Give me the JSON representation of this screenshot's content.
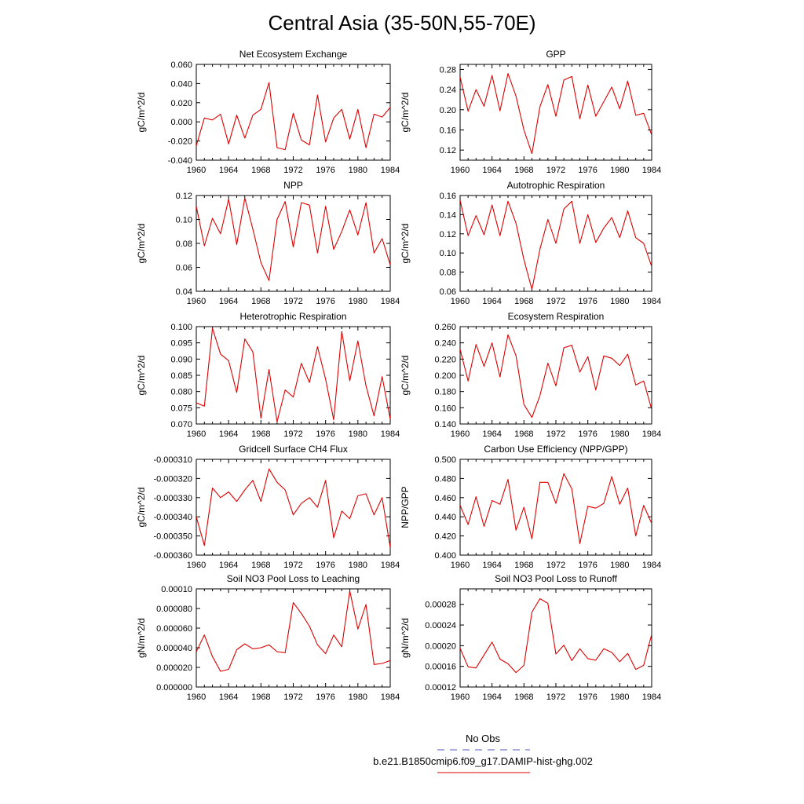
{
  "page_title": "Central Asia (35-50N,55-70E)",
  "legend": [
    {
      "label": "No Obs",
      "color": "#5555cc",
      "style": "dashed"
    },
    {
      "label": "b.e21.B1850cmip6.f09_g17.DAMIP-hist-ghg.002",
      "color": "#dd0000",
      "style": "solid"
    }
  ],
  "chart_data": [
    {
      "type": "line",
      "title": "Net Ecosystem Exchange",
      "ylabel": "gC/m^2/d",
      "xlim": [
        1960,
        1984
      ],
      "ylim": [
        -0.04,
        0.06
      ],
      "xticks": [
        1960,
        1964,
        1968,
        1972,
        1976,
        1980,
        1984
      ],
      "yticks": [
        -0.04,
        -0.02,
        0.0,
        0.02,
        0.04,
        0.06
      ],
      "ytick_labels": [
        "-0.040",
        "-0.020",
        "0.000",
        "0.020",
        "0.040",
        "0.060"
      ],
      "x": [
        1960,
        1961,
        1962,
        1963,
        1964,
        1965,
        1966,
        1967,
        1968,
        1969,
        1970,
        1971,
        1972,
        1973,
        1974,
        1975,
        1976,
        1977,
        1978,
        1979,
        1980,
        1981,
        1982,
        1983,
        1984
      ],
      "series": [
        {
          "color": "#dd0000",
          "values": [
            -0.025,
            0.004,
            0.002,
            0.008,
            -0.023,
            0.007,
            -0.017,
            0.007,
            0.013,
            0.041,
            -0.027,
            -0.029,
            0.009,
            -0.019,
            -0.024,
            0.028,
            -0.021,
            0.004,
            0.013,
            -0.018,
            0.013,
            -0.027,
            0.008,
            0.005,
            0.015
          ]
        }
      ]
    },
    {
      "type": "line",
      "title": "GPP",
      "ylabel": "gC/m^2/d",
      "xlim": [
        1960,
        1984
      ],
      "ylim": [
        0.1,
        0.29
      ],
      "xticks": [
        1960,
        1964,
        1968,
        1972,
        1976,
        1980,
        1984
      ],
      "yticks": [
        0.12,
        0.16,
        0.2,
        0.24,
        0.28
      ],
      "ytick_labels": [
        "0.12",
        "0.16",
        "0.20",
        "0.24",
        "0.28"
      ],
      "x": [
        1960,
        1961,
        1962,
        1963,
        1964,
        1965,
        1966,
        1967,
        1968,
        1969,
        1970,
        1971,
        1972,
        1973,
        1974,
        1975,
        1976,
        1977,
        1978,
        1979,
        1980,
        1981,
        1982,
        1983,
        1984
      ],
      "series": [
        {
          "color": "#dd0000",
          "values": [
            0.265,
            0.197,
            0.24,
            0.207,
            0.268,
            0.198,
            0.272,
            0.227,
            0.16,
            0.113,
            0.206,
            0.25,
            0.187,
            0.259,
            0.266,
            0.182,
            0.249,
            0.187,
            0.216,
            0.245,
            0.202,
            0.257,
            0.189,
            0.193,
            0.15
          ]
        }
      ]
    },
    {
      "type": "line",
      "title": "NPP",
      "ylabel": "gC/m^2/d",
      "xlim": [
        1960,
        1984
      ],
      "ylim": [
        0.04,
        0.12
      ],
      "xticks": [
        1960,
        1964,
        1968,
        1972,
        1976,
        1980,
        1984
      ],
      "yticks": [
        0.04,
        0.06,
        0.08,
        0.1,
        0.12
      ],
      "ytick_labels": [
        "0.04",
        "0.06",
        "0.08",
        "0.10",
        "0.12"
      ],
      "x": [
        1960,
        1961,
        1962,
        1963,
        1964,
        1965,
        1966,
        1967,
        1968,
        1969,
        1970,
        1971,
        1972,
        1973,
        1974,
        1975,
        1976,
        1977,
        1978,
        1979,
        1980,
        1981,
        1982,
        1983,
        1984
      ],
      "series": [
        {
          "color": "#dd0000",
          "values": [
            0.111,
            0.078,
            0.101,
            0.088,
            0.117,
            0.079,
            0.118,
            0.092,
            0.064,
            0.049,
            0.1,
            0.115,
            0.077,
            0.114,
            0.112,
            0.072,
            0.111,
            0.075,
            0.09,
            0.108,
            0.087,
            0.114,
            0.072,
            0.084,
            0.062
          ]
        }
      ]
    },
    {
      "type": "line",
      "title": "Autotrophic Respiration",
      "ylabel": "gC/m^2/d",
      "xlim": [
        1960,
        1984
      ],
      "ylim": [
        0.06,
        0.16
      ],
      "xticks": [
        1960,
        1964,
        1968,
        1972,
        1976,
        1980,
        1984
      ],
      "yticks": [
        0.06,
        0.08,
        0.1,
        0.12,
        0.14,
        0.16
      ],
      "ytick_labels": [
        "0.06",
        "0.08",
        "0.10",
        "0.12",
        "0.14",
        "0.16"
      ],
      "x": [
        1960,
        1961,
        1962,
        1963,
        1964,
        1965,
        1966,
        1967,
        1968,
        1969,
        1970,
        1971,
        1972,
        1973,
        1974,
        1975,
        1976,
        1977,
        1978,
        1979,
        1980,
        1981,
        1982,
        1983,
        1984
      ],
      "series": [
        {
          "color": "#dd0000",
          "values": [
            0.155,
            0.118,
            0.139,
            0.119,
            0.15,
            0.118,
            0.154,
            0.131,
            0.093,
            0.062,
            0.104,
            0.135,
            0.11,
            0.146,
            0.154,
            0.11,
            0.14,
            0.111,
            0.126,
            0.137,
            0.116,
            0.144,
            0.116,
            0.11,
            0.086
          ]
        }
      ]
    },
    {
      "type": "line",
      "title": "Heterotrophic Respiration",
      "ylabel": "gC/m^2/d",
      "xlim": [
        1960,
        1984
      ],
      "ylim": [
        0.07,
        0.1
      ],
      "xticks": [
        1960,
        1964,
        1968,
        1972,
        1976,
        1980,
        1984
      ],
      "yticks": [
        0.07,
        0.075,
        0.08,
        0.085,
        0.09,
        0.095,
        0.1
      ],
      "ytick_labels": [
        "0.070",
        "0.075",
        "0.080",
        "0.085",
        "0.090",
        "0.095",
        "0.100"
      ],
      "x": [
        1960,
        1961,
        1962,
        1963,
        1964,
        1965,
        1966,
        1967,
        1968,
        1969,
        1970,
        1971,
        1972,
        1973,
        1974,
        1975,
        1976,
        1977,
        1978,
        1979,
        1980,
        1981,
        1982,
        1983,
        1984
      ],
      "series": [
        {
          "color": "#dd0000",
          "values": [
            0.0765,
            0.0755,
            0.0995,
            0.0915,
            0.0895,
            0.0797,
            0.0962,
            0.0922,
            0.0718,
            0.0868,
            0.0707,
            0.0805,
            0.0783,
            0.0887,
            0.0828,
            0.0938,
            0.0838,
            0.0713,
            0.0985,
            0.0833,
            0.0956,
            0.0818,
            0.0725,
            0.0846,
            0.0715
          ]
        }
      ]
    },
    {
      "type": "line",
      "title": "Ecosystem Respiration",
      "ylabel": "gC/m^2/d",
      "xlim": [
        1960,
        1984
      ],
      "ylim": [
        0.14,
        0.26
      ],
      "xticks": [
        1960,
        1964,
        1968,
        1972,
        1976,
        1980,
        1984
      ],
      "yticks": [
        0.14,
        0.16,
        0.18,
        0.2,
        0.22,
        0.24,
        0.26
      ],
      "ytick_labels": [
        "0.140",
        "0.160",
        "0.180",
        "0.200",
        "0.220",
        "0.240",
        "0.260"
      ],
      "x": [
        1960,
        1961,
        1962,
        1963,
        1964,
        1965,
        1966,
        1967,
        1968,
        1969,
        1970,
        1971,
        1972,
        1973,
        1974,
        1975,
        1976,
        1977,
        1978,
        1979,
        1980,
        1981,
        1982,
        1983,
        1984
      ],
      "series": [
        {
          "color": "#dd0000",
          "values": [
            0.232,
            0.193,
            0.238,
            0.211,
            0.24,
            0.198,
            0.25,
            0.224,
            0.164,
            0.148,
            0.175,
            0.215,
            0.187,
            0.234,
            0.237,
            0.204,
            0.223,
            0.182,
            0.224,
            0.221,
            0.212,
            0.226,
            0.188,
            0.193,
            0.158
          ]
        }
      ]
    },
    {
      "type": "line",
      "title": "Gridcell Surface CH4 Flux",
      "ylabel": "gC/m^2/d",
      "xlim": [
        1960,
        1984
      ],
      "ylim": [
        -0.00036,
        -0.00031
      ],
      "xticks": [
        1960,
        1964,
        1968,
        1972,
        1976,
        1980,
        1984
      ],
      "yticks": [
        -0.00036,
        -0.00035,
        -0.00034,
        -0.00033,
        -0.00032,
        -0.00031
      ],
      "ytick_labels": [
        "-0.000360",
        "-0.000350",
        "-0.000340",
        "-0.000330",
        "-0.000320",
        "-0.000310"
      ],
      "x": [
        1960,
        1961,
        1962,
        1963,
        1964,
        1965,
        1966,
        1967,
        1968,
        1969,
        1970,
        1971,
        1972,
        1973,
        1974,
        1975,
        1976,
        1977,
        1978,
        1979,
        1980,
        1981,
        1982,
        1983,
        1984
      ],
      "series": [
        {
          "color": "#dd0000",
          "values": [
            -0.00034,
            -0.000355,
            -0.000325,
            -0.00033,
            -0.000327,
            -0.000332,
            -0.000326,
            -0.000321,
            -0.000332,
            -0.000315,
            -0.000322,
            -0.000326,
            -0.000339,
            -0.000333,
            -0.00033,
            -0.000335,
            -0.000321,
            -0.000351,
            -0.000337,
            -0.000341,
            -0.000329,
            -0.000328,
            -0.000339,
            -0.00033,
            -0.000356
          ]
        }
      ]
    },
    {
      "type": "line",
      "title": "Carbon Use Efficiency (NPP/GPP)",
      "ylabel": "NPP/GPP",
      "xlim": [
        1960,
        1984
      ],
      "ylim": [
        0.4,
        0.5
      ],
      "xticks": [
        1960,
        1964,
        1968,
        1972,
        1976,
        1980,
        1984
      ],
      "yticks": [
        0.4,
        0.42,
        0.44,
        0.46,
        0.48,
        0.5
      ],
      "ytick_labels": [
        "0.400",
        "0.420",
        "0.440",
        "0.460",
        "0.480",
        "0.500"
      ],
      "x": [
        1960,
        1961,
        1962,
        1963,
        1964,
        1965,
        1966,
        1967,
        1968,
        1969,
        1970,
        1971,
        1972,
        1973,
        1974,
        1975,
        1976,
        1977,
        1978,
        1979,
        1980,
        1981,
        1982,
        1983,
        1984
      ],
      "series": [
        {
          "color": "#dd0000",
          "values": [
            0.452,
            0.432,
            0.461,
            0.43,
            0.457,
            0.453,
            0.479,
            0.426,
            0.45,
            0.417,
            0.476,
            0.476,
            0.454,
            0.485,
            0.469,
            0.412,
            0.451,
            0.449,
            0.454,
            0.482,
            0.453,
            0.47,
            0.42,
            0.452,
            0.433
          ]
        }
      ]
    },
    {
      "type": "line",
      "title": "Soil NO3 Pool Loss to Leaching",
      "ylabel": "gN/m^2/d",
      "xlim": [
        1960,
        1984
      ],
      "ylim": [
        0.0,
        0.0001
      ],
      "xticks": [
        1960,
        1964,
        1968,
        1972,
        1976,
        1980,
        1984
      ],
      "yticks": [
        0.0,
        2e-05,
        4e-05,
        6e-05,
        8e-05,
        0.0001
      ],
      "ytick_labels": [
        "0.000000",
        "0.000020",
        "0.000040",
        "0.000060",
        "0.000080",
        "0.00010"
      ],
      "x": [
        1960,
        1961,
        1962,
        1963,
        1964,
        1965,
        1966,
        1967,
        1968,
        1969,
        1970,
        1971,
        1972,
        1973,
        1974,
        1975,
        1976,
        1977,
        1978,
        1979,
        1980,
        1981,
        1982,
        1983,
        1984
      ],
      "series": [
        {
          "color": "#dd0000",
          "values": [
            3.6e-05,
            5.3e-05,
            3.1e-05,
            1.6e-05,
            1.8e-05,
            3.8e-05,
            4.4e-05,
            3.9e-05,
            4e-05,
            4.3e-05,
            3.6e-05,
            3.5e-05,
            8.6e-05,
            7.5e-05,
            6.2e-05,
            4.3e-05,
            3.4e-05,
            5.3e-05,
            4.1e-05,
            9.8e-05,
            5.9e-05,
            8.4e-05,
            2.3e-05,
            2.4e-05,
            2.7e-05
          ]
        }
      ]
    },
    {
      "type": "line",
      "title": "Soil NO3 Pool Loss to Runoff",
      "ylabel": "gN/m^2/d",
      "xlim": [
        1960,
        1984
      ],
      "ylim": [
        0.00012,
        0.00031
      ],
      "xticks": [
        1960,
        1964,
        1968,
        1972,
        1976,
        1980,
        1984
      ],
      "yticks": [
        0.00012,
        0.00016,
        0.0002,
        0.00024,
        0.00028
      ],
      "ytick_labels": [
        "0.00012",
        "0.00016",
        "0.00020",
        "0.00024",
        "0.00028"
      ],
      "x": [
        1960,
        1961,
        1962,
        1963,
        1964,
        1965,
        1966,
        1967,
        1968,
        1969,
        1970,
        1971,
        1972,
        1973,
        1974,
        1975,
        1976,
        1977,
        1978,
        1979,
        1980,
        1981,
        1982,
        1983,
        1984
      ],
      "series": [
        {
          "color": "#dd0000",
          "values": [
            0.000195,
            0.000159,
            0.000157,
            0.000182,
            0.000207,
            0.000174,
            0.000165,
            0.000148,
            0.000162,
            0.000265,
            0.000291,
            0.000282,
            0.000184,
            0.000201,
            0.000171,
            0.000194,
            0.000175,
            0.000172,
            0.000194,
            0.000187,
            0.000169,
            0.000185,
            0.000154,
            0.000162,
            0.000222
          ]
        }
      ]
    }
  ]
}
